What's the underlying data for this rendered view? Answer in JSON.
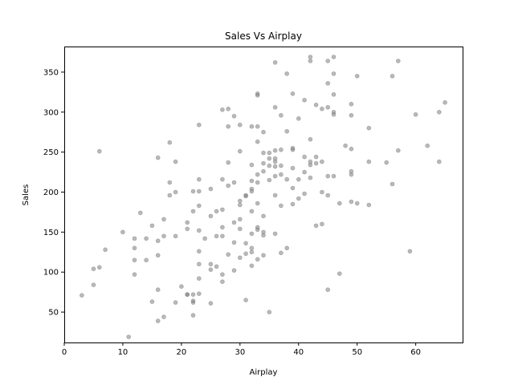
{
  "chart_data": {
    "type": "scatter",
    "title": "Sales Vs Airplay",
    "xlabel": "Airplay",
    "ylabel": "Sales",
    "xlim": [
      0,
      68
    ],
    "ylim": [
      12,
      382
    ],
    "xticks": [
      0,
      10,
      20,
      30,
      40,
      50,
      60
    ],
    "yticks": [
      50,
      100,
      150,
      200,
      250,
      300,
      350
    ],
    "grid": false,
    "point_color": "#808080",
    "points": [
      [
        3,
        71
      ],
      [
        5,
        104
      ],
      [
        5,
        84
      ],
      [
        6,
        106
      ],
      [
        6,
        251
      ],
      [
        7,
        128
      ],
      [
        10,
        150
      ],
      [
        11,
        19
      ],
      [
        12,
        115
      ],
      [
        12,
        97
      ],
      [
        12,
        130
      ],
      [
        12,
        142
      ],
      [
        13,
        174
      ],
      [
        14,
        142
      ],
      [
        14,
        115
      ],
      [
        15,
        63
      ],
      [
        15,
        158
      ],
      [
        16,
        139
      ],
      [
        16,
        121
      ],
      [
        16,
        78
      ],
      [
        16,
        243
      ],
      [
        16,
        39
      ],
      [
        17,
        44
      ],
      [
        17,
        166
      ],
      [
        17,
        145
      ],
      [
        18,
        262
      ],
      [
        18,
        212
      ],
      [
        18,
        196
      ],
      [
        19,
        200
      ],
      [
        19,
        238
      ],
      [
        19,
        145
      ],
      [
        19,
        62
      ],
      [
        20,
        82
      ],
      [
        21,
        154
      ],
      [
        21,
        162
      ],
      [
        21,
        72
      ],
      [
        21,
        72
      ],
      [
        22,
        201
      ],
      [
        22,
        62
      ],
      [
        22,
        72
      ],
      [
        22,
        64
      ],
      [
        22,
        46
      ],
      [
        22,
        176
      ],
      [
        23,
        284
      ],
      [
        23,
        216
      ],
      [
        23,
        201
      ],
      [
        23,
        183
      ],
      [
        23,
        152
      ],
      [
        23,
        126
      ],
      [
        23,
        110
      ],
      [
        23,
        92
      ],
      [
        23,
        73
      ],
      [
        24,
        142
      ],
      [
        25,
        204
      ],
      [
        25,
        170
      ],
      [
        25,
        110
      ],
      [
        25,
        103
      ],
      [
        25,
        61
      ],
      [
        26,
        176
      ],
      [
        26,
        145
      ],
      [
        26,
        107
      ],
      [
        27,
        303
      ],
      [
        27,
        216
      ],
      [
        27,
        178
      ],
      [
        27,
        156
      ],
      [
        27,
        145
      ],
      [
        27,
        97
      ],
      [
        27,
        88
      ],
      [
        28,
        304
      ],
      [
        28,
        282
      ],
      [
        28,
        237
      ],
      [
        28,
        208
      ],
      [
        28,
        122
      ],
      [
        29,
        295
      ],
      [
        29,
        212
      ],
      [
        29,
        162
      ],
      [
        29,
        137
      ],
      [
        29,
        102
      ],
      [
        30,
        284
      ],
      [
        30,
        251
      ],
      [
        30,
        189
      ],
      [
        30,
        184
      ],
      [
        30,
        166
      ],
      [
        30,
        154
      ],
      [
        30,
        118
      ],
      [
        31,
        195
      ],
      [
        31,
        196
      ],
      [
        31,
        136
      ],
      [
        31,
        123
      ],
      [
        31,
        65
      ],
      [
        32,
        282
      ],
      [
        32,
        234
      ],
      [
        32,
        214
      ],
      [
        32,
        204
      ],
      [
        32,
        201
      ],
      [
        32,
        176
      ],
      [
        32,
        148
      ],
      [
        32,
        130
      ],
      [
        32,
        125
      ],
      [
        32,
        108
      ],
      [
        33,
        323
      ],
      [
        33,
        321
      ],
      [
        33,
        282
      ],
      [
        33,
        263
      ],
      [
        33,
        222
      ],
      [
        33,
        212
      ],
      [
        33,
        186
      ],
      [
        33,
        156
      ],
      [
        33,
        153
      ],
      [
        33,
        116
      ],
      [
        34,
        275
      ],
      [
        34,
        249
      ],
      [
        34,
        236
      ],
      [
        34,
        226
      ],
      [
        34,
        170
      ],
      [
        34,
        150
      ],
      [
        34,
        146
      ],
      [
        34,
        121
      ],
      [
        35,
        249
      ],
      [
        35,
        242
      ],
      [
        35,
        233
      ],
      [
        35,
        215
      ],
      [
        35,
        50
      ],
      [
        36,
        362
      ],
      [
        36,
        306
      ],
      [
        36,
        252
      ],
      [
        36,
        242
      ],
      [
        36,
        238
      ],
      [
        36,
        232
      ],
      [
        36,
        220
      ],
      [
        36,
        196
      ],
      [
        36,
        148
      ],
      [
        37,
        296
      ],
      [
        37,
        253
      ],
      [
        37,
        233
      ],
      [
        37,
        222
      ],
      [
        37,
        183
      ],
      [
        37,
        124
      ],
      [
        38,
        348
      ],
      [
        38,
        276
      ],
      [
        38,
        216
      ],
      [
        38,
        130
      ],
      [
        39,
        323
      ],
      [
        39,
        255
      ],
      [
        39,
        253
      ],
      [
        39,
        230
      ],
      [
        39,
        205
      ],
      [
        39,
        185
      ],
      [
        40,
        292
      ],
      [
        40,
        216
      ],
      [
        40,
        192
      ],
      [
        41,
        315
      ],
      [
        41,
        244
      ],
      [
        41,
        225
      ],
      [
        41,
        198
      ],
      [
        42,
        369
      ],
      [
        42,
        364
      ],
      [
        42,
        266
      ],
      [
        42,
        238
      ],
      [
        42,
        234
      ],
      [
        42,
        218
      ],
      [
        43,
        309
      ],
      [
        43,
        244
      ],
      [
        43,
        236
      ],
      [
        43,
        158
      ],
      [
        44,
        304
      ],
      [
        44,
        238
      ],
      [
        44,
        200
      ],
      [
        44,
        160
      ],
      [
        45,
        364
      ],
      [
        45,
        336
      ],
      [
        45,
        306
      ],
      [
        45,
        220
      ],
      [
        45,
        196
      ],
      [
        45,
        78
      ],
      [
        46,
        369
      ],
      [
        46,
        348
      ],
      [
        46,
        322
      ],
      [
        46,
        300
      ],
      [
        46,
        297
      ],
      [
        46,
        220
      ],
      [
        47,
        186
      ],
      [
        47,
        98
      ],
      [
        48,
        258
      ],
      [
        49,
        310
      ],
      [
        49,
        296
      ],
      [
        49,
        254
      ],
      [
        49,
        226
      ],
      [
        49,
        222
      ],
      [
        49,
        188
      ],
      [
        50,
        345
      ],
      [
        50,
        186
      ],
      [
        52,
        280
      ],
      [
        52,
        238
      ],
      [
        52,
        184
      ],
      [
        55,
        237
      ],
      [
        56,
        345
      ],
      [
        56,
        210
      ],
      [
        57,
        364
      ],
      [
        57,
        252
      ],
      [
        59,
        126
      ],
      [
        60,
        297
      ],
      [
        62,
        258
      ],
      [
        64,
        300
      ],
      [
        64,
        238
      ],
      [
        65,
        312
      ]
    ]
  }
}
